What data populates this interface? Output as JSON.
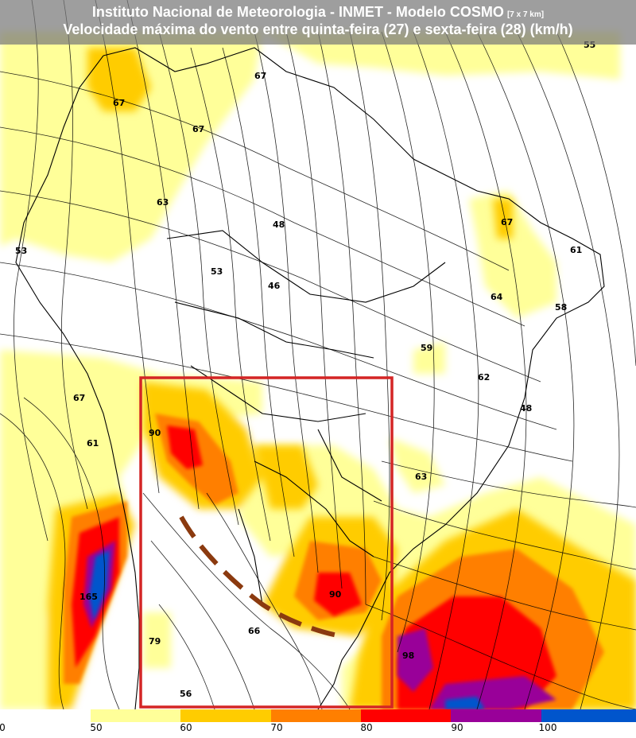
{
  "header": {
    "title_line1": "Instituto Nacional de Meteorologia - INMET - Modelo COSMO",
    "title_resolution": "[7 x 7 km]",
    "title_line2": "Velocidade máxima do vento entre quinta-feira (27) e sexta-feira (28) (km/h)"
  },
  "map_labels": [
    "55",
    "67",
    "67",
    "67",
    "63",
    "48",
    "53",
    "53",
    "46",
    "67",
    "61",
    "64",
    "58",
    "59",
    "62",
    "48",
    "67",
    "61",
    "63",
    "90",
    "90",
    "165",
    "79",
    "66",
    "98",
    "56"
  ],
  "colorbar": {
    "ticks": [
      "0",
      "50",
      "60",
      "70",
      "80",
      "90",
      "100"
    ],
    "colors": [
      "#ffffff",
      "#ffff99",
      "#ffcc00",
      "#ff7f00",
      "#ff0000",
      "#990099",
      "#0055cc"
    ]
  },
  "colors": {
    "highlight_box": "#d42525",
    "front_line": "#8b3a0f"
  }
}
